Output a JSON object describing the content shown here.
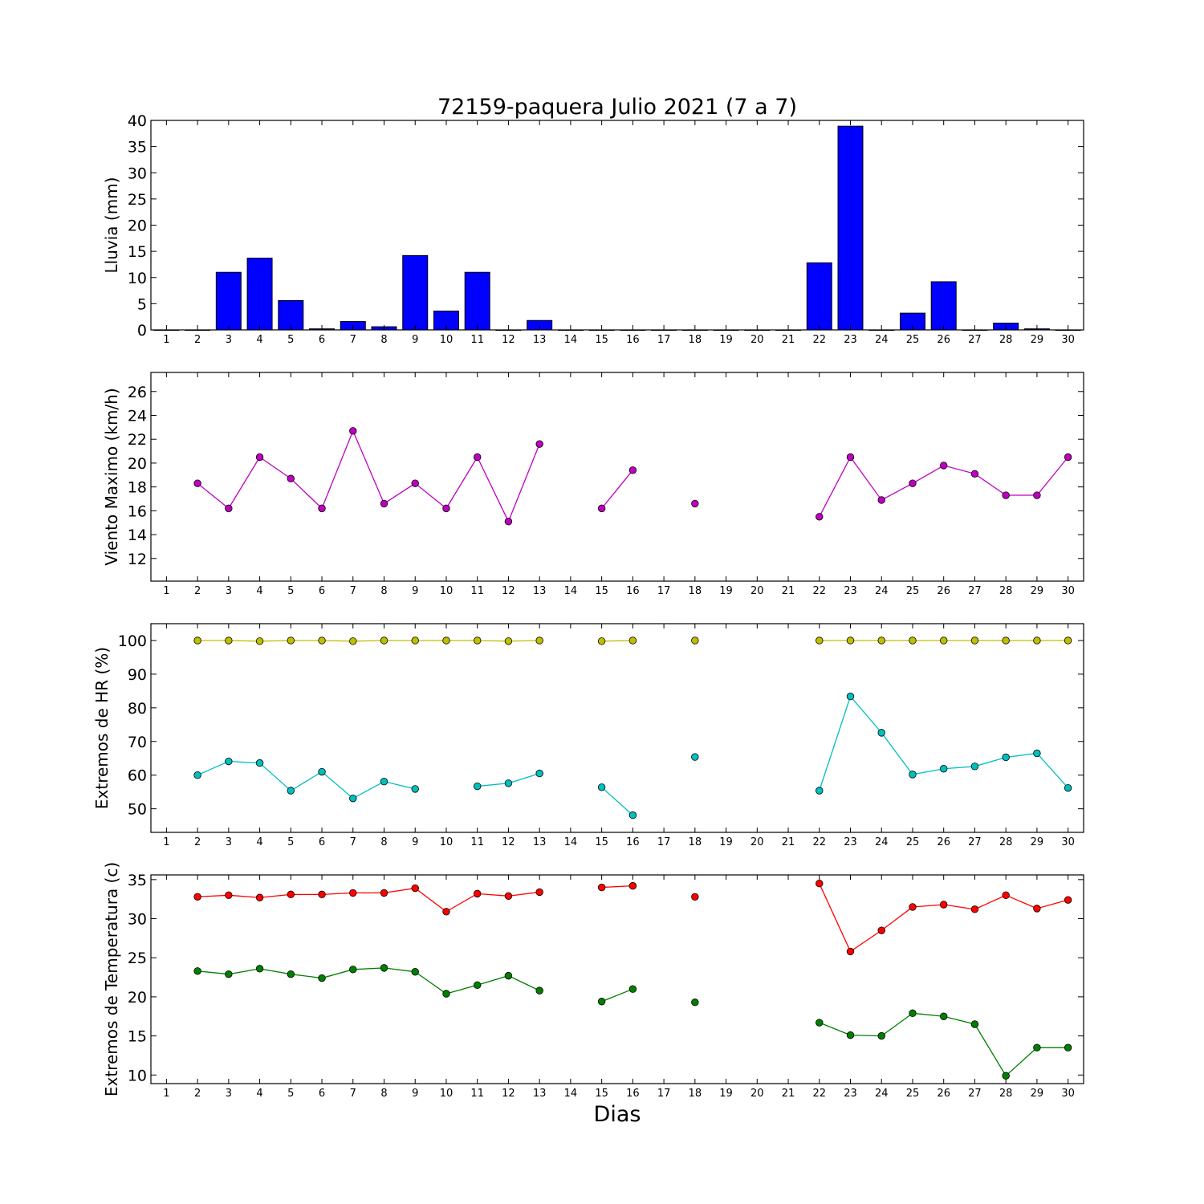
{
  "figure": {
    "title": "72159-paquera Julio 2021  (7 a 7)",
    "xlabel": "Dias"
  },
  "chart_data": [
    {
      "type": "bar",
      "ylabel": "Lluvia (mm)",
      "ylim": [
        0,
        40
      ],
      "yticks": [
        0,
        5,
        10,
        15,
        20,
        25,
        30,
        35,
        40
      ],
      "xlim": [
        0.5,
        30.5
      ],
      "xticks": [
        1,
        2,
        3,
        4,
        5,
        6,
        7,
        8,
        9,
        10,
        11,
        12,
        13,
        14,
        15,
        16,
        17,
        18,
        19,
        20,
        21,
        22,
        23,
        24,
        25,
        26,
        27,
        28,
        29,
        30
      ],
      "color": "#0000ff",
      "series": [
        {
          "x": [
            1,
            2,
            3,
            4,
            5,
            6,
            7,
            8,
            9,
            10,
            11,
            12,
            13,
            14,
            15,
            16,
            17,
            18,
            19,
            20,
            21,
            22,
            23,
            24,
            25,
            26,
            27,
            28,
            29,
            30
          ],
          "values": [
            0,
            0,
            11,
            13.7,
            5.6,
            0.2,
            1.6,
            0.6,
            14.2,
            3.6,
            11,
            0,
            1.8,
            0,
            0,
            0,
            0,
            0,
            0,
            0,
            0,
            12.8,
            38.9,
            0,
            3.2,
            9.2,
            0,
            1.3,
            0.2,
            0
          ]
        }
      ]
    },
    {
      "type": "line",
      "ylabel": "Viento Maximo (km/h)",
      "ylim": [
        10.1,
        27.6
      ],
      "yticks": [
        12,
        14,
        16,
        18,
        20,
        22,
        24,
        26
      ],
      "xlim": [
        0.5,
        30.5
      ],
      "xticks": [
        1,
        2,
        3,
        4,
        5,
        6,
        7,
        8,
        9,
        10,
        11,
        12,
        13,
        14,
        15,
        16,
        17,
        18,
        19,
        20,
        21,
        22,
        23,
        24,
        25,
        26,
        27,
        28,
        29,
        30
      ],
      "series": [
        {
          "color": "#bf00bf",
          "x": [
            2,
            3,
            4,
            5,
            6,
            7,
            8,
            9,
            10,
            11,
            12,
            13,
            14,
            15,
            16,
            17,
            18,
            19,
            20,
            21,
            22,
            23,
            24,
            25,
            26,
            27,
            28,
            29,
            30
          ],
          "values": [
            18.3,
            16.2,
            20.5,
            18.7,
            16.2,
            22.7,
            16.6,
            18.3,
            16.2,
            20.5,
            15.1,
            21.6,
            null,
            16.2,
            19.4,
            null,
            16.6,
            null,
            null,
            null,
            15.5,
            20.5,
            16.9,
            18.3,
            19.8,
            19.1,
            17.3,
            17.3,
            20.5
          ]
        }
      ]
    },
    {
      "type": "line",
      "ylabel": "Extremos de HR (%)",
      "ylim": [
        43,
        105
      ],
      "yticks": [
        50,
        60,
        70,
        80,
        90,
        100
      ],
      "xlim": [
        0.5,
        30.5
      ],
      "xticks": [
        1,
        2,
        3,
        4,
        5,
        6,
        7,
        8,
        9,
        10,
        11,
        12,
        13,
        14,
        15,
        16,
        17,
        18,
        19,
        20,
        21,
        22,
        23,
        24,
        25,
        26,
        27,
        28,
        29,
        30
      ],
      "series": [
        {
          "color": "#bfbf00",
          "x": [
            2,
            3,
            4,
            5,
            6,
            7,
            8,
            9,
            10,
            11,
            12,
            13,
            14,
            15,
            16,
            17,
            18,
            19,
            20,
            21,
            22,
            23,
            24,
            25,
            26,
            27,
            28,
            29,
            30
          ],
          "values": [
            100,
            100,
            99.8,
            100,
            100,
            99.8,
            100,
            100,
            100,
            100,
            99.8,
            100,
            null,
            99.8,
            100,
            null,
            100,
            null,
            null,
            null,
            100,
            100,
            100,
            100,
            100,
            100,
            100,
            100,
            100
          ]
        },
        {
          "color": "#00bfbf",
          "x": [
            2,
            3,
            4,
            5,
            6,
            7,
            8,
            9,
            10,
            11,
            12,
            13,
            14,
            15,
            16,
            17,
            18,
            19,
            20,
            21,
            22,
            23,
            24,
            25,
            26,
            27,
            28,
            29,
            30
          ],
          "values": [
            60,
            64.1,
            63.6,
            55.4,
            61,
            53.1,
            58.1,
            55.9,
            null,
            56.7,
            57.6,
            60.5,
            null,
            56.4,
            48.1,
            null,
            65.4,
            null,
            null,
            null,
            55.4,
            83.4,
            72.6,
            60.2,
            61.9,
            62.6,
            65.3,
            66.5,
            56.2
          ]
        }
      ]
    },
    {
      "type": "line",
      "ylabel": "Extremos de Temperatura (c)",
      "ylim": [
        8.9,
        35.6
      ],
      "yticks": [
        10,
        15,
        20,
        25,
        30,
        35
      ],
      "xlim": [
        0.5,
        30.5
      ],
      "xticks": [
        1,
        2,
        3,
        4,
        5,
        6,
        7,
        8,
        9,
        10,
        11,
        12,
        13,
        14,
        15,
        16,
        17,
        18,
        19,
        20,
        21,
        22,
        23,
        24,
        25,
        26,
        27,
        28,
        29,
        30
      ],
      "series": [
        {
          "color": "#ff0000",
          "x": [
            2,
            3,
            4,
            5,
            6,
            7,
            8,
            9,
            10,
            11,
            12,
            13,
            14,
            15,
            16,
            17,
            18,
            19,
            20,
            21,
            22,
            23,
            24,
            25,
            26,
            27,
            28,
            29,
            30
          ],
          "values": [
            32.8,
            33,
            32.7,
            33.1,
            33.1,
            33.3,
            33.3,
            33.9,
            30.9,
            33.2,
            32.9,
            33.4,
            null,
            34,
            34.2,
            null,
            32.8,
            null,
            null,
            null,
            34.5,
            25.8,
            28.5,
            31.5,
            31.8,
            31.2,
            33,
            31.3,
            32.4
          ]
        },
        {
          "color": "#008000",
          "x": [
            2,
            3,
            4,
            5,
            6,
            7,
            8,
            9,
            10,
            11,
            12,
            13,
            14,
            15,
            16,
            17,
            18,
            19,
            20,
            21,
            22,
            23,
            24,
            25,
            26,
            27,
            28,
            29,
            30
          ],
          "values": [
            23.3,
            22.9,
            23.6,
            22.9,
            22.4,
            23.5,
            23.7,
            23.2,
            20.4,
            21.5,
            22.7,
            20.8,
            null,
            19.4,
            21,
            null,
            19.3,
            null,
            null,
            null,
            16.7,
            15.1,
            15,
            17.9,
            17.5,
            16.5,
            9.9,
            13.5,
            13.5
          ]
        }
      ]
    }
  ]
}
